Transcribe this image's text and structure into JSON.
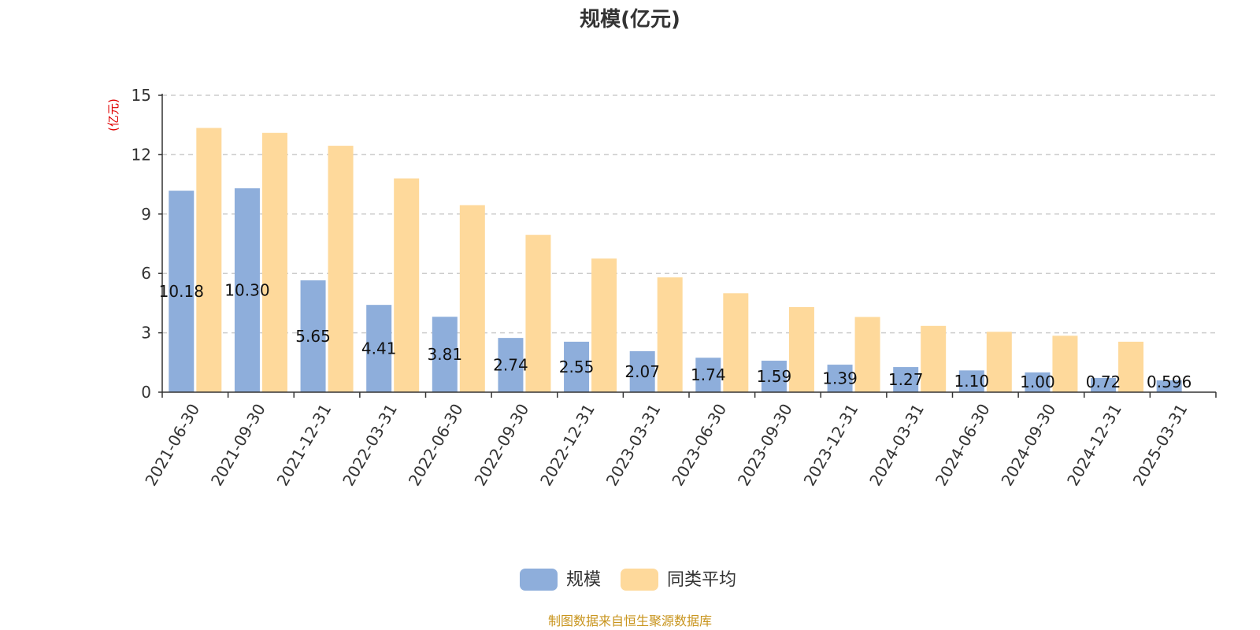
{
  "chart_data": {
    "type": "bar",
    "title": "规模(亿元)",
    "ylabel": "(亿元)",
    "ylim": [
      0,
      15
    ],
    "yticks": [
      0,
      3,
      6,
      9,
      12,
      15
    ],
    "grid": true,
    "legend_position": "bottom",
    "categories": [
      "2021-06-30",
      "2021-09-30",
      "2021-12-31",
      "2022-03-31",
      "2022-06-30",
      "2022-09-30",
      "2022-12-31",
      "2023-03-31",
      "2023-06-30",
      "2023-09-30",
      "2023-12-31",
      "2024-03-31",
      "2024-06-30",
      "2024-09-30",
      "2024-12-31",
      "2025-03-31"
    ],
    "series": [
      {
        "name": "规模",
        "color": "#8eaedb",
        "values": [
          10.18,
          10.3,
          5.65,
          4.41,
          3.81,
          2.74,
          2.55,
          2.07,
          1.74,
          1.59,
          1.39,
          1.27,
          1.1,
          1.0,
          0.72,
          0.596
        ],
        "labels": [
          "10.18",
          "10.30",
          "5.65",
          "4.41",
          "3.81",
          "2.74",
          "2.55",
          "2.07",
          "1.74",
          "1.59",
          "1.39",
          "1.27",
          "1.10",
          "1.00",
          "0.72",
          "0.596"
        ]
      },
      {
        "name": "同类平均",
        "color": "#fed99b",
        "values": [
          13.35,
          13.1,
          12.45,
          10.8,
          9.45,
          7.95,
          6.75,
          5.8,
          5.0,
          4.3,
          3.8,
          3.35,
          3.05,
          2.85,
          2.55,
          null
        ]
      }
    ],
    "source": "制图数据来自恒生聚源数据库"
  }
}
